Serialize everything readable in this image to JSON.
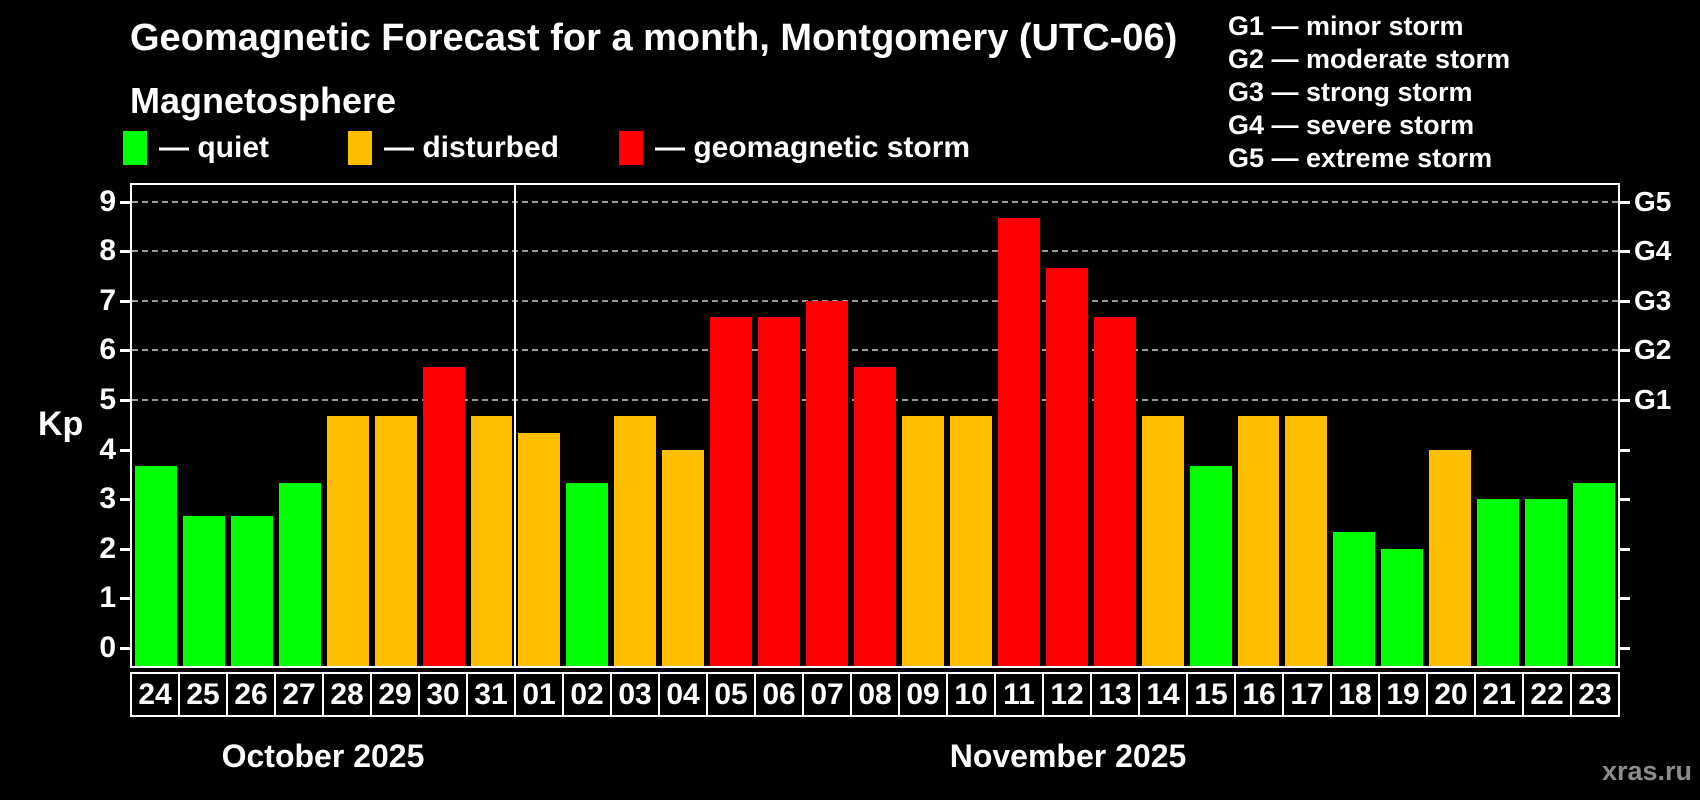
{
  "title": "Geomagnetic Forecast for a month, Montgomery (UTC-06)",
  "subtitle": "Magnetosphere",
  "legend": {
    "items": [
      {
        "key": "quiet",
        "label": "— quiet"
      },
      {
        "key": "disturbed",
        "label": "— disturbed"
      },
      {
        "key": "storm",
        "label": "— geomagnetic storm"
      }
    ]
  },
  "g_scale_legend": {
    "lines": [
      "G1 — minor storm",
      "G2 — moderate storm",
      "G3 — strong storm",
      "G4 — severe storm",
      "G5 — extreme storm"
    ]
  },
  "colors": {
    "quiet": "#00ff00",
    "disturbed": "#ffbe00",
    "storm": "#ff0000",
    "grid": "#9a9a9a",
    "axis": "#ffffff",
    "watermark": "#8c8c8c"
  },
  "y_axis": {
    "label": "Kp",
    "ticks": [
      0,
      1,
      2,
      3,
      4,
      5,
      6,
      7,
      8,
      9
    ]
  },
  "right_axis": {
    "labels": [
      {
        "text": "G1",
        "kp": 5
      },
      {
        "text": "G2",
        "kp": 6
      },
      {
        "text": "G3",
        "kp": 7
      },
      {
        "text": "G4",
        "kp": 8
      },
      {
        "text": "G5",
        "kp": 9
      }
    ]
  },
  "months": [
    {
      "label": "October 2025",
      "days": 8
    },
    {
      "label": "November 2025",
      "days": 23
    }
  ],
  "watermark": "xras.ru",
  "chart_data": {
    "type": "bar",
    "title": "Geomagnetic Forecast for a month, Montgomery (UTC-06)",
    "ylabel": "Kp",
    "ylim": [
      0,
      9
    ],
    "gridlines_at": [
      5,
      6,
      7,
      8,
      9
    ],
    "legend_position": "top-left",
    "month_separator_after_index": 7,
    "days": [
      {
        "date": "24",
        "month": "October 2025",
        "kp": 3.67,
        "status": "quiet"
      },
      {
        "date": "25",
        "month": "October 2025",
        "kp": 2.67,
        "status": "quiet"
      },
      {
        "date": "26",
        "month": "October 2025",
        "kp": 2.67,
        "status": "quiet"
      },
      {
        "date": "27",
        "month": "October 2025",
        "kp": 3.33,
        "status": "quiet"
      },
      {
        "date": "28",
        "month": "October 2025",
        "kp": 4.67,
        "status": "disturbed"
      },
      {
        "date": "29",
        "month": "October 2025",
        "kp": 4.67,
        "status": "disturbed"
      },
      {
        "date": "30",
        "month": "October 2025",
        "kp": 5.67,
        "status": "storm"
      },
      {
        "date": "31",
        "month": "October 2025",
        "kp": 4.67,
        "status": "disturbed"
      },
      {
        "date": "01",
        "month": "November 2025",
        "kp": 4.33,
        "status": "disturbed"
      },
      {
        "date": "02",
        "month": "November 2025",
        "kp": 3.33,
        "status": "quiet"
      },
      {
        "date": "03",
        "month": "November 2025",
        "kp": 4.67,
        "status": "disturbed"
      },
      {
        "date": "04",
        "month": "November 2025",
        "kp": 4.0,
        "status": "disturbed"
      },
      {
        "date": "05",
        "month": "November 2025",
        "kp": 6.67,
        "status": "storm"
      },
      {
        "date": "06",
        "month": "November 2025",
        "kp": 6.67,
        "status": "storm"
      },
      {
        "date": "07",
        "month": "November 2025",
        "kp": 7.0,
        "status": "storm"
      },
      {
        "date": "08",
        "month": "November 2025",
        "kp": 5.67,
        "status": "storm"
      },
      {
        "date": "09",
        "month": "November 2025",
        "kp": 4.67,
        "status": "disturbed"
      },
      {
        "date": "10",
        "month": "November 2025",
        "kp": 4.67,
        "status": "disturbed"
      },
      {
        "date": "11",
        "month": "November 2025",
        "kp": 8.67,
        "status": "storm"
      },
      {
        "date": "12",
        "month": "November 2025",
        "kp": 7.67,
        "status": "storm"
      },
      {
        "date": "13",
        "month": "November 2025",
        "kp": 6.67,
        "status": "storm"
      },
      {
        "date": "14",
        "month": "November 2025",
        "kp": 4.67,
        "status": "disturbed"
      },
      {
        "date": "15",
        "month": "November 2025",
        "kp": 3.67,
        "status": "quiet"
      },
      {
        "date": "16",
        "month": "November 2025",
        "kp": 4.67,
        "status": "disturbed"
      },
      {
        "date": "17",
        "month": "November 2025",
        "kp": 4.67,
        "status": "disturbed"
      },
      {
        "date": "18",
        "month": "November 2025",
        "kp": 2.33,
        "status": "quiet"
      },
      {
        "date": "19",
        "month": "November 2025",
        "kp": 2.0,
        "status": "quiet"
      },
      {
        "date": "20",
        "month": "November 2025",
        "kp": 4.0,
        "status": "disturbed"
      },
      {
        "date": "21",
        "month": "November 2025",
        "kp": 3.0,
        "status": "quiet"
      },
      {
        "date": "22",
        "month": "November 2025",
        "kp": 3.0,
        "status": "quiet"
      },
      {
        "date": "23",
        "month": "November 2025",
        "kp": 3.33,
        "status": "quiet"
      }
    ]
  }
}
